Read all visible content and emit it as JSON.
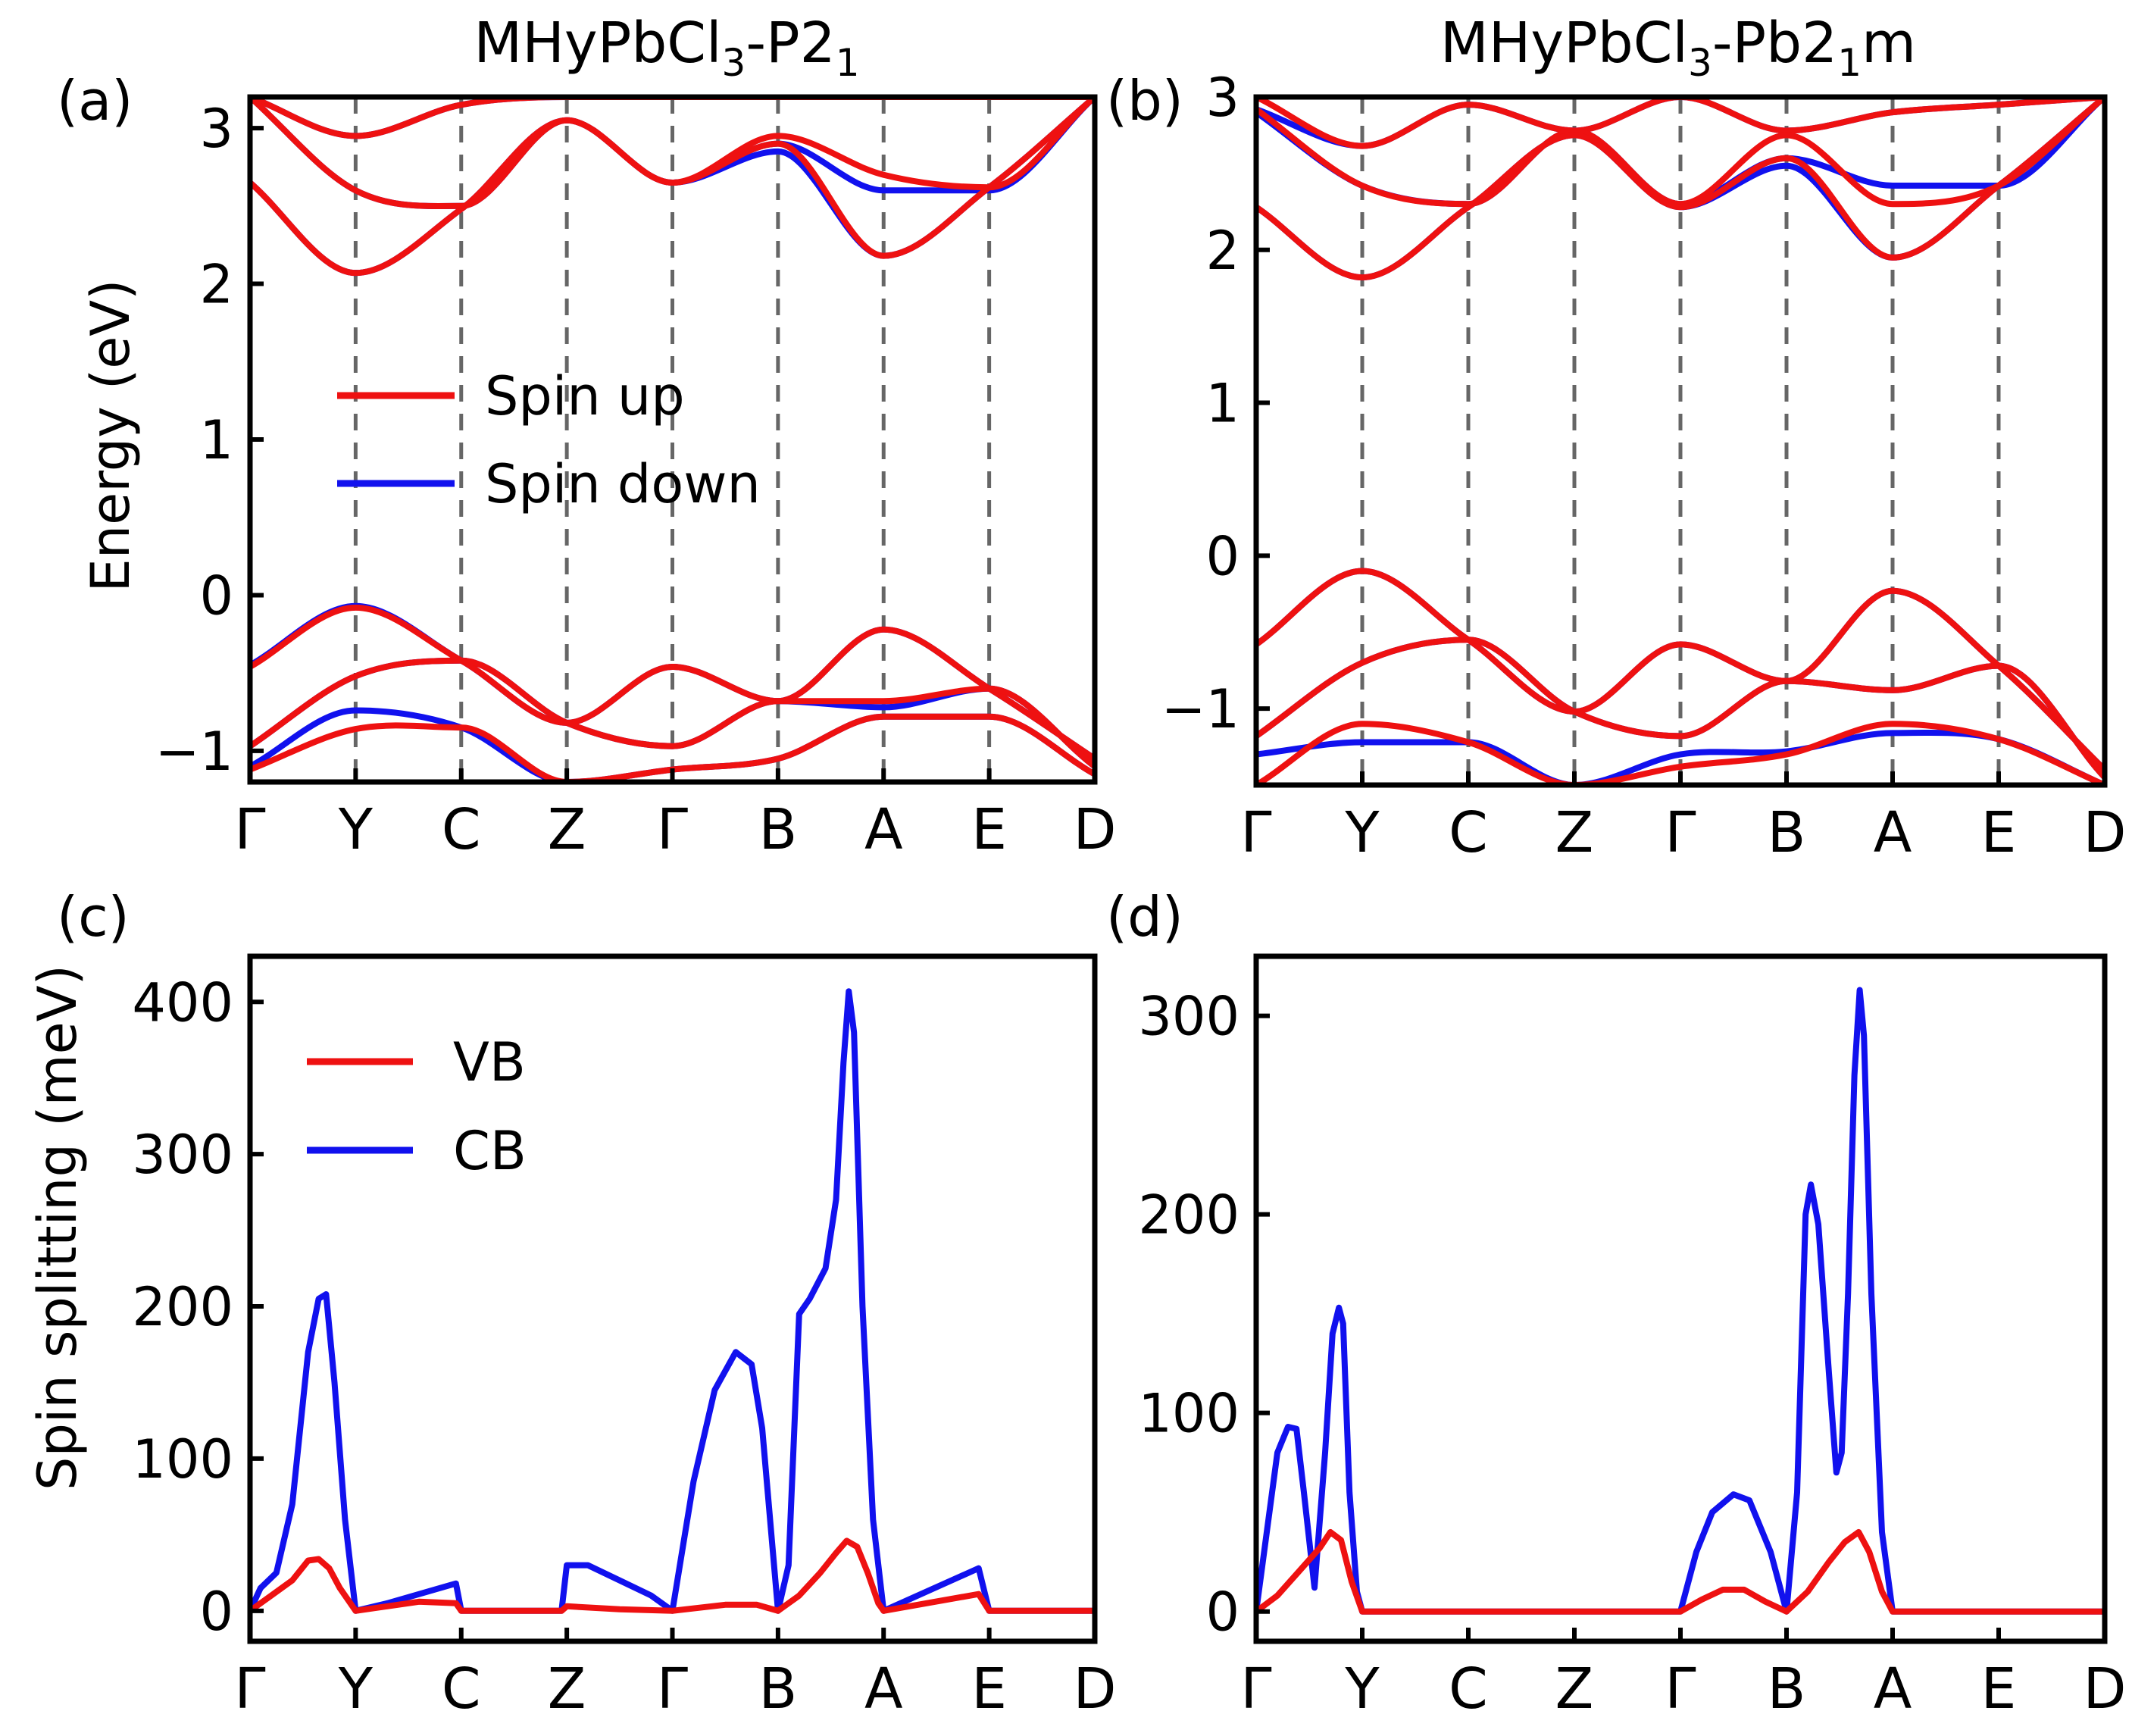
{
  "colors": {
    "spin_up": "#ee1111",
    "spin_down": "#1111ee",
    "vb": "#ee1111",
    "cb": "#1111ee"
  },
  "chart_data": [
    {
      "id": "a",
      "panel_label": "(a)",
      "type": "line",
      "title": "MHyPbCl3-P21",
      "title_parts": {
        "pre": "MHyPbCl",
        "s1": "3",
        "mid": "-P2",
        "s2": "1",
        "post": ""
      },
      "ylabel": "Energy (eV)",
      "ylim": [
        -1.2,
        3.2
      ],
      "yticks": [
        -1,
        0,
        1,
        2,
        3
      ],
      "ytick_labels": [
        "−1",
        "0",
        "1",
        "2",
        "3"
      ],
      "kpoints": [
        "Γ",
        "Y",
        "C",
        "Z",
        "Γ",
        "B",
        "A",
        "E",
        "D"
      ],
      "legend": [
        "Spin up",
        "Spin down"
      ],
      "series": [
        {
          "name": "Spin down",
          "role": "down",
          "values": [
            3.2,
            2.95,
            3.15,
            3.2,
            3.2,
            3.2,
            3.2,
            3.2,
            3.2
          ]
        },
        {
          "name": "Spin down",
          "role": "down",
          "values": [
            3.2,
            2.6,
            2.5,
            3.05,
            2.65,
            2.9,
            2.6,
            2.6,
            3.2
          ]
        },
        {
          "name": "Spin down",
          "role": "down",
          "values": [
            2.65,
            2.07,
            2.48,
            3.05,
            2.65,
            2.85,
            2.18,
            2.62,
            3.2
          ]
        },
        {
          "name": "Spin down",
          "role": "down",
          "values": [
            -0.45,
            -0.07,
            -0.42,
            -0.82,
            -0.46,
            -0.68,
            -0.22,
            -0.6,
            -1.05
          ]
        },
        {
          "name": "Spin down",
          "role": "down",
          "values": [
            -0.97,
            -0.52,
            -0.42,
            -0.82,
            -0.97,
            -0.68,
            -0.72,
            -0.6,
            -1.1
          ]
        },
        {
          "name": "Spin down",
          "role": "down",
          "values": [
            -1.1,
            -0.74,
            -0.85,
            -1.2,
            -1.12,
            -1.05,
            -0.78,
            -0.78,
            -1.15
          ]
        },
        {
          "name": "Spin up",
          "role": "up",
          "values": [
            3.2,
            2.95,
            3.15,
            3.2,
            3.2,
            3.2,
            3.2,
            3.2,
            3.2
          ]
        },
        {
          "name": "Spin up",
          "role": "up",
          "values": [
            3.2,
            2.6,
            2.5,
            3.05,
            2.65,
            2.95,
            2.7,
            2.62,
            3.2
          ]
        },
        {
          "name": "Spin up",
          "role": "up",
          "values": [
            2.65,
            2.07,
            2.48,
            3.05,
            2.65,
            2.9,
            2.18,
            2.62,
            3.2
          ]
        },
        {
          "name": "Spin up",
          "role": "up",
          "values": [
            -0.46,
            -0.08,
            -0.42,
            -0.82,
            -0.46,
            -0.68,
            -0.22,
            -0.6,
            -1.05
          ]
        },
        {
          "name": "Spin up",
          "role": "up",
          "values": [
            -0.97,
            -0.52,
            -0.42,
            -0.82,
            -0.97,
            -0.68,
            -0.68,
            -0.6,
            -1.1
          ]
        },
        {
          "name": "Spin up",
          "role": "up",
          "values": [
            -1.12,
            -0.86,
            -0.85,
            -1.2,
            -1.12,
            -1.05,
            -0.78,
            -0.78,
            -1.15
          ]
        }
      ]
    },
    {
      "id": "b",
      "panel_label": "(b)",
      "type": "line",
      "title": "MHyPbCl3-Pb21m",
      "title_parts": {
        "pre": "MHyPbCl",
        "s1": "3",
        "mid": "-Pb2",
        "s2": "1",
        "post": "m"
      },
      "ylabel": "",
      "ylim": [
        -1.5,
        3.0
      ],
      "yticks": [
        -1,
        0,
        1,
        2,
        3
      ],
      "ytick_labels": [
        "−1",
        "0",
        "1",
        "2",
        "3"
      ],
      "kpoints": [
        "Γ",
        "Y",
        "C",
        "Z",
        "Γ",
        "B",
        "A",
        "E",
        "D"
      ],
      "legend": [],
      "series": [
        {
          "name": "Spin down",
          "role": "down",
          "values": [
            2.92,
            2.68,
            2.95,
            2.78,
            3.0,
            2.78,
            2.9,
            2.95,
            3.0
          ]
        },
        {
          "name": "Spin down",
          "role": "down",
          "values": [
            2.9,
            2.42,
            2.3,
            2.78,
            2.3,
            2.6,
            2.42,
            2.42,
            3.0
          ]
        },
        {
          "name": "Spin down",
          "role": "down",
          "values": [
            2.28,
            1.82,
            2.28,
            2.75,
            2.28,
            2.55,
            1.95,
            2.42,
            3.0
          ]
        },
        {
          "name": "Spin down",
          "role": "down",
          "values": [
            -0.58,
            -0.1,
            -0.55,
            -1.02,
            -0.58,
            -0.82,
            -0.23,
            -0.72,
            -1.4
          ]
        },
        {
          "name": "Spin down",
          "role": "down",
          "values": [
            -1.18,
            -0.7,
            -0.55,
            -1.02,
            -1.18,
            -0.82,
            -0.88,
            -0.72,
            -1.45
          ]
        },
        {
          "name": "Spin down",
          "role": "down",
          "values": [
            -1.3,
            -1.22,
            -1.22,
            -1.5,
            -1.3,
            -1.28,
            -1.16,
            -1.2,
            -1.5
          ]
        },
        {
          "name": "Spin up",
          "role": "up",
          "values": [
            3.0,
            2.68,
            2.95,
            2.78,
            3.0,
            2.78,
            2.9,
            2.95,
            3.0
          ]
        },
        {
          "name": "Spin up",
          "role": "up",
          "values": [
            2.92,
            2.42,
            2.3,
            2.78,
            2.3,
            2.75,
            2.3,
            2.42,
            3.0
          ]
        },
        {
          "name": "Spin up",
          "role": "up",
          "values": [
            2.28,
            1.82,
            2.28,
            2.75,
            2.28,
            2.6,
            1.95,
            2.42,
            3.0
          ]
        },
        {
          "name": "Spin up",
          "role": "up",
          "values": [
            -0.58,
            -0.1,
            -0.55,
            -1.02,
            -0.58,
            -0.82,
            -0.23,
            -0.72,
            -1.4
          ]
        },
        {
          "name": "Spin up",
          "role": "up",
          "values": [
            -1.18,
            -0.7,
            -0.55,
            -1.02,
            -1.18,
            -0.82,
            -0.88,
            -0.72,
            -1.45
          ]
        },
        {
          "name": "Spin up",
          "role": "up",
          "values": [
            -1.5,
            -1.1,
            -1.22,
            -1.5,
            -1.38,
            -1.3,
            -1.1,
            -1.2,
            -1.5
          ]
        }
      ]
    },
    {
      "id": "c",
      "panel_label": "(c)",
      "type": "line",
      "title": "",
      "ylabel": "Spin splitting (meV)",
      "ylim": [
        -20,
        430
      ],
      "yticks": [
        0,
        100,
        200,
        300,
        400
      ],
      "ytick_labels": [
        "0",
        "100",
        "200",
        "300",
        "400"
      ],
      "kpoints": [
        "Γ",
        "Y",
        "C",
        "Z",
        "Γ",
        "B",
        "A",
        "E",
        "D"
      ],
      "legend": [
        "VB",
        "CB"
      ],
      "series": [
        {
          "name": "CB",
          "role": "cb",
          "points": [
            [
              0,
              0
            ],
            [
              0.1,
              15
            ],
            [
              0.25,
              25
            ],
            [
              0.4,
              70
            ],
            [
              0.55,
              170
            ],
            [
              0.65,
              205
            ],
            [
              0.72,
              208
            ],
            [
              0.8,
              150
            ],
            [
              0.9,
              60
            ],
            [
              1,
              0
            ],
            [
              1.3,
              5
            ],
            [
              1.95,
              18
            ],
            [
              2,
              0
            ],
            [
              2.95,
              0
            ],
            [
              3,
              30
            ],
            [
              3.2,
              30
            ],
            [
              3.5,
              20
            ],
            [
              3.8,
              10
            ],
            [
              4,
              0
            ],
            [
              4.2,
              85
            ],
            [
              4.4,
              145
            ],
            [
              4.6,
              170
            ],
            [
              4.75,
              162
            ],
            [
              4.85,
              120
            ],
            [
              4.95,
              40
            ],
            [
              5,
              0
            ],
            [
              5.1,
              30
            ],
            [
              5.2,
              195
            ],
            [
              5.3,
              205
            ],
            [
              5.45,
              225
            ],
            [
              5.55,
              270
            ],
            [
              5.62,
              360
            ],
            [
              5.67,
              407
            ],
            [
              5.72,
              380
            ],
            [
              5.8,
              200
            ],
            [
              5.9,
              60
            ],
            [
              6,
              0
            ],
            [
              6.9,
              28
            ],
            [
              7,
              0
            ],
            [
              8,
              0
            ]
          ]
        },
        {
          "name": "VB",
          "role": "vb",
          "points": [
            [
              0,
              0
            ],
            [
              0.2,
              10
            ],
            [
              0.4,
              20
            ],
            [
              0.55,
              33
            ],
            [
              0.65,
              34
            ],
            [
              0.75,
              28
            ],
            [
              0.85,
              15
            ],
            [
              1,
              0
            ],
            [
              1.3,
              3
            ],
            [
              1.6,
              6
            ],
            [
              1.95,
              5
            ],
            [
              2,
              0
            ],
            [
              2.95,
              0
            ],
            [
              3,
              3
            ],
            [
              3.5,
              1
            ],
            [
              4,
              0
            ],
            [
              4.5,
              4
            ],
            [
              4.8,
              4
            ],
            [
              5,
              0
            ],
            [
              5.2,
              10
            ],
            [
              5.4,
              25
            ],
            [
              5.55,
              38
            ],
            [
              5.65,
              46
            ],
            [
              5.75,
              42
            ],
            [
              5.85,
              25
            ],
            [
              5.95,
              5
            ],
            [
              6,
              0
            ],
            [
              6.9,
              11
            ],
            [
              7,
              0
            ],
            [
              8,
              0
            ]
          ]
        }
      ]
    },
    {
      "id": "d",
      "panel_label": "(d)",
      "type": "line",
      "title": "",
      "ylabel": "",
      "ylim": [
        -15,
        330
      ],
      "yticks": [
        0,
        100,
        200,
        300
      ],
      "ytick_labels": [
        "0",
        "100",
        "200",
        "300"
      ],
      "kpoints": [
        "Γ",
        "Y",
        "C",
        "Z",
        "Γ",
        "B",
        "A",
        "E",
        "D"
      ],
      "legend": [],
      "series": [
        {
          "name": "CB",
          "role": "cb",
          "points": [
            [
              0,
              0
            ],
            [
              0.1,
              40
            ],
            [
              0.2,
              80
            ],
            [
              0.3,
              93
            ],
            [
              0.38,
              92
            ],
            [
              0.45,
              60
            ],
            [
              0.55,
              12
            ],
            [
              0.65,
              80
            ],
            [
              0.72,
              140
            ],
            [
              0.78,
              153
            ],
            [
              0.82,
              145
            ],
            [
              0.88,
              60
            ],
            [
              0.95,
              10
            ],
            [
              1,
              0
            ],
            [
              4,
              0
            ],
            [
              4.15,
              30
            ],
            [
              4.3,
              50
            ],
            [
              4.5,
              59
            ],
            [
              4.65,
              56
            ],
            [
              4.85,
              30
            ],
            [
              5,
              0
            ],
            [
              5.1,
              60
            ],
            [
              5.18,
              200
            ],
            [
              5.23,
              215
            ],
            [
              5.3,
              195
            ],
            [
              5.4,
              120
            ],
            [
              5.47,
              70
            ],
            [
              5.52,
              80
            ],
            [
              5.58,
              160
            ],
            [
              5.64,
              270
            ],
            [
              5.69,
              313
            ],
            [
              5.73,
              290
            ],
            [
              5.8,
              160
            ],
            [
              5.9,
              40
            ],
            [
              6,
              0
            ],
            [
              8,
              0
            ]
          ]
        },
        {
          "name": "VB",
          "role": "vb",
          "points": [
            [
              0,
              0
            ],
            [
              0.2,
              8
            ],
            [
              0.4,
              20
            ],
            [
              0.6,
              32
            ],
            [
              0.7,
              40
            ],
            [
              0.8,
              36
            ],
            [
              0.9,
              15
            ],
            [
              1,
              0
            ],
            [
              4,
              0
            ],
            [
              4.2,
              6
            ],
            [
              4.4,
              11
            ],
            [
              4.6,
              11
            ],
            [
              4.8,
              5
            ],
            [
              5,
              0
            ],
            [
              5.2,
              10
            ],
            [
              5.4,
              25
            ],
            [
              5.55,
              35
            ],
            [
              5.68,
              40
            ],
            [
              5.78,
              30
            ],
            [
              5.9,
              10
            ],
            [
              6,
              0
            ],
            [
              8,
              0
            ]
          ]
        }
      ]
    }
  ]
}
